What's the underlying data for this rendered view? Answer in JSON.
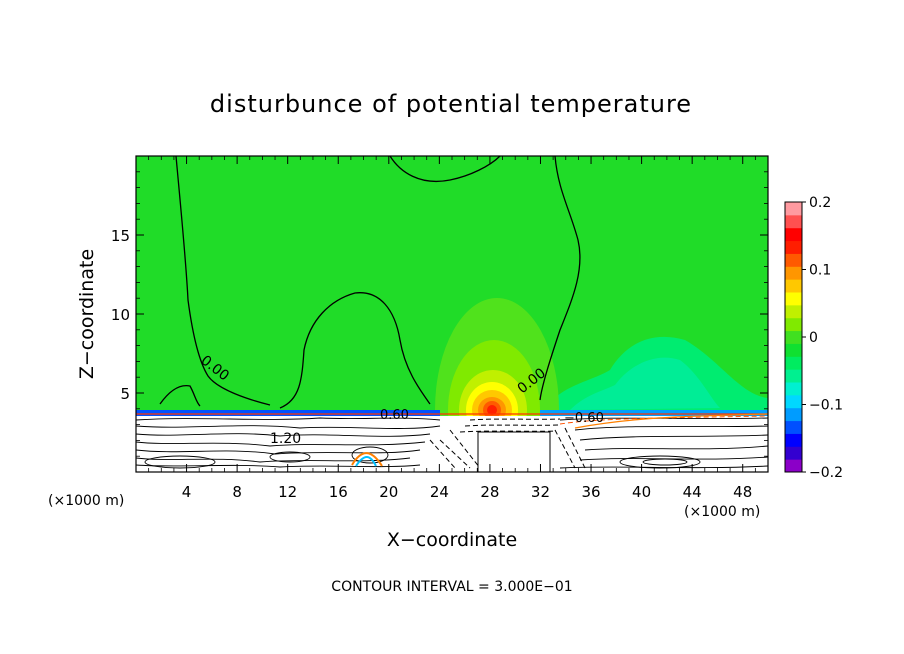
{
  "chart_data": {
    "type": "heatmap",
    "title": "disturbunce of potential temperature",
    "xlabel": "X−coordinate",
    "ylabel": "Z−coordinate",
    "x_unit": "(×1000 m)",
    "x_unit_right": "(×1000 m)",
    "xlim": [
      0,
      50
    ],
    "ylim": [
      0,
      20
    ],
    "xticks": [
      4,
      8,
      12,
      16,
      20,
      24,
      28,
      32,
      36,
      40,
      44,
      48
    ],
    "yticks": [
      5,
      10,
      15
    ],
    "colorbar": {
      "range": [
        -0.2,
        0.2
      ],
      "ticks": [
        0.2,
        0.1,
        0,
        -0.1,
        -0.2
      ],
      "tick_labels": [
        "0.2",
        "0.1",
        "0",
        "−0.1",
        "−0.2"
      ],
      "colors": [
        "#8b00c8",
        "#3300d0",
        "#0000ff",
        "#0050ff",
        "#009cff",
        "#00d8ff",
        "#00f0d0",
        "#00f090",
        "#00ec60",
        "#10e030",
        "#40e020",
        "#80ea00",
        "#c0f000",
        "#ffff00",
        "#ffc800",
        "#ff9600",
        "#ff5a00",
        "#ff1e00",
        "#ff0000",
        "#ff5050",
        "#ff9aa0"
      ]
    },
    "contour_labels": [
      {
        "text": "0.00",
        "x": 5.8,
        "z": 6.5
      },
      {
        "text": "0.00",
        "x": 31.2,
        "z": 5.5
      },
      {
        "text": "−0.60",
        "x": 34.7,
        "z": 3.7
      },
      {
        "text": "1.20",
        "x": 11.8,
        "z": 2.2
      },
      {
        "text": "0.60",
        "x": 18.5,
        "z": 3.8
      }
    ],
    "warm_anomaly_center": {
      "x": 28.5,
      "z": 4.5
    },
    "cool_anomaly_center": {
      "x": 42,
      "z": 6.5
    },
    "contour_interval_note": "CONTOUR INTERVAL = 3.000E−01"
  }
}
